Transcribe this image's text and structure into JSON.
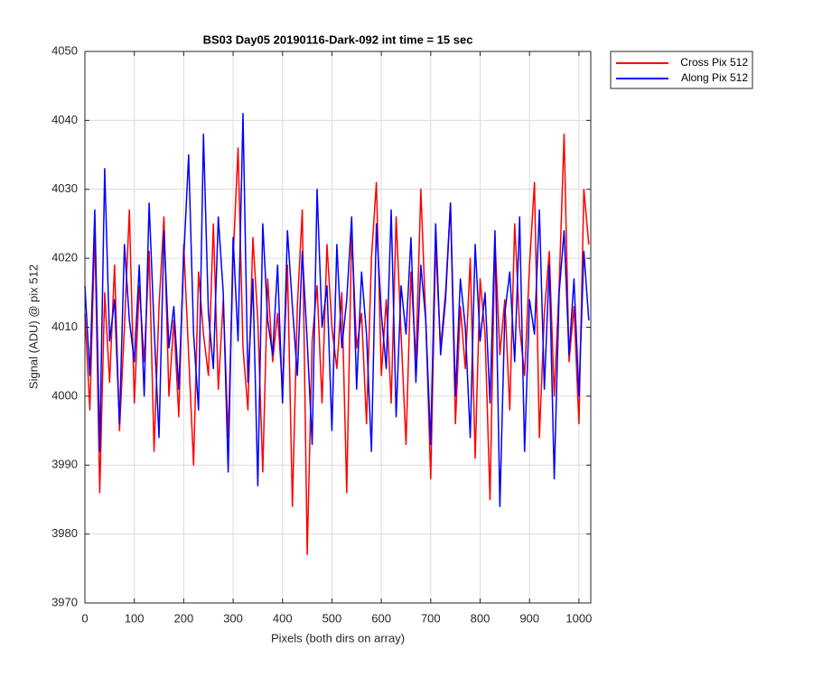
{
  "chart_data": {
    "type": "line",
    "title": "BS03 Day05 20190116-Dark-092 int time = 15 sec",
    "x_label": "Pixels (both dirs on array)",
    "y_label": "Signal (ADU) @ pix 512",
    "xlim": [
      0,
      1024
    ],
    "xticks": [
      0,
      100,
      200,
      300,
      400,
      500,
      600,
      700,
      800,
      900,
      1000
    ],
    "ylim": [
      3970,
      4050
    ],
    "yticks": [
      3970,
      3980,
      3990,
      4000,
      4010,
      4020,
      4030,
      4040,
      4050
    ],
    "grid": true,
    "legend": "outside-northeast",
    "x": [
      0,
      10,
      20,
      30,
      40,
      50,
      60,
      70,
      80,
      90,
      100,
      110,
      120,
      130,
      140,
      150,
      160,
      170,
      180,
      190,
      200,
      210,
      220,
      230,
      240,
      250,
      260,
      270,
      280,
      290,
      300,
      310,
      320,
      330,
      340,
      350,
      360,
      370,
      380,
      390,
      400,
      410,
      420,
      430,
      440,
      450,
      460,
      470,
      480,
      490,
      500,
      510,
      520,
      530,
      540,
      550,
      560,
      570,
      580,
      590,
      600,
      610,
      620,
      630,
      640,
      650,
      660,
      670,
      680,
      690,
      700,
      710,
      720,
      730,
      740,
      750,
      760,
      770,
      780,
      790,
      800,
      810,
      820,
      830,
      840,
      850,
      860,
      870,
      880,
      890,
      900,
      910,
      920,
      930,
      940,
      950,
      960,
      970,
      980,
      990,
      1000,
      1010,
      1020
    ],
    "series": [
      {
        "name": "Cross Pix 512",
        "color": "#ff0000",
        "values": [
          4012,
          3998,
          4024,
          3986,
          4015,
          4002,
          4019,
          3995,
          4010,
          4027,
          3999,
          4016,
          4005,
          4021,
          3992,
          4013,
          4026,
          4000,
          4011,
          3997,
          4022,
          4006,
          3990,
          4018,
          4009,
          4003,
          4025,
          4001,
          4014,
          3994,
          4020,
          4036,
          4007,
          3998,
          4023,
          4011,
          3989,
          4017,
          4005,
          4012,
          4001,
          4019,
          3984,
          4013,
          4027,
          3977,
          4008,
          4016,
          3999,
          4022,
          4010,
          4004,
          4015,
          3986,
          4024,
          4007,
          4012,
          3996,
          4020,
          4031,
          4003,
          4014,
          3999,
          4026,
          4009,
          3993,
          4018,
          4005,
          4030,
          4011,
          3988,
          4022,
          4007,
          4015,
          4028,
          3996,
          4013,
          4004,
          4020,
          3991,
          4017,
          4009,
          3985,
          4023,
          4006,
          4014,
          3998,
          4025,
          4010,
          4003,
          4019,
          4031,
          3994,
          4012,
          4021,
          4000,
          4016,
          4038,
          4005,
          4013,
          3996,
          4030,
          4022
        ]
      },
      {
        "name": "Along Pix 512",
        "color": "#0000ff",
        "values": [
          4016,
          4003,
          4027,
          3992,
          4033,
          4008,
          4014,
          3996,
          4022,
          4011,
          4005,
          4019,
          4000,
          4028,
          4010,
          3994,
          4024,
          4007,
          4013,
          4001,
          4020,
          4035,
          4009,
          3998,
          4038,
          4012,
          4004,
          4026,
          4015,
          3989,
          4023,
          4008,
          4041,
          4002,
          4017,
          3987,
          4025,
          4011,
          4006,
          4019,
          3999,
          4024,
          4013,
          4003,
          4021,
          4008,
          3993,
          4030,
          4010,
          4016,
          3995,
          4022,
          4007,
          4014,
          4026,
          4001,
          4018,
          4009,
          3992,
          4025,
          4012,
          4004,
          4027,
          3997,
          4016,
          4009,
          4023,
          4002,
          4019,
          4011,
          3993,
          4025,
          4006,
          4014,
          4028,
          4000,
          4017,
          4010,
          3994,
          4022,
          4008,
          4015,
          3999,
          4024,
          3984,
          4012,
          4018,
          4005,
          4026,
          3992,
          4014,
          4009,
          4027,
          4001,
          4019,
          3988,
          4015,
          4024,
          4006,
          4017,
          4000,
          4021,
          4011
        ]
      }
    ]
  }
}
